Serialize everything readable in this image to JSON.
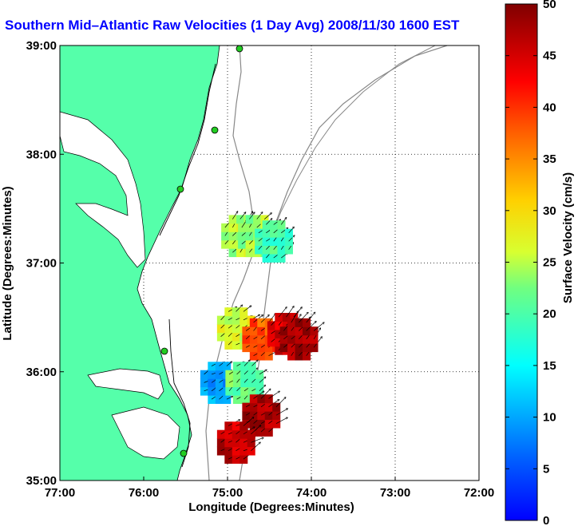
{
  "chart_data": {
    "type": "heatmap",
    "title": "Southern Mid–Atlantic Raw Velocities (1 Day Avg) 2008/11/30 1600 EST",
    "xlabel": "Longitude (Degrees:Minutes)",
    "ylabel": "Latitude (Degrees:Minutes)",
    "xlim": [
      -77,
      -72
    ],
    "ylim": [
      35,
      39
    ],
    "x_ticks": [
      -77,
      -76,
      -75,
      -74,
      -73,
      -72
    ],
    "x_tick_labels": [
      "77:00",
      "76:00",
      "75:00",
      "74:00",
      "73:00",
      "72:00"
    ],
    "y_ticks": [
      35,
      36,
      37,
      38,
      39
    ],
    "y_tick_labels": [
      "35:00",
      "36:00",
      "37:00",
      "38:00",
      "39:00"
    ],
    "grid": true,
    "colorbar": {
      "label": "Surface Velocity (cm/s)",
      "min": 0,
      "max": 50,
      "ticks": [
        0,
        5,
        10,
        15,
        20,
        25,
        30,
        35,
        40,
        45,
        50
      ],
      "colormap": "jet"
    },
    "land_color": "#55ffaa",
    "regions": [
      {
        "lon": -74.85,
        "lat": 37.25,
        "speed": 25,
        "dir_deg": 40
      },
      {
        "lon": -74.65,
        "lat": 37.25,
        "speed": 24,
        "dir_deg": 40
      },
      {
        "lon": -74.45,
        "lat": 37.2,
        "speed": 20,
        "dir_deg": 45
      },
      {
        "lon": -74.9,
        "lat": 36.4,
        "speed": 27,
        "dir_deg": 55
      },
      {
        "lon": -74.6,
        "lat": 36.3,
        "speed": 38,
        "dir_deg": 50
      },
      {
        "lon": -74.3,
        "lat": 36.35,
        "speed": 45,
        "dir_deg": 45
      },
      {
        "lon": -74.15,
        "lat": 36.3,
        "speed": 48,
        "dir_deg": 40
      },
      {
        "lon": -75.1,
        "lat": 35.9,
        "speed": 10,
        "dir_deg": 60
      },
      {
        "lon": -74.8,
        "lat": 35.9,
        "speed": 22,
        "dir_deg": 50
      },
      {
        "lon": -74.6,
        "lat": 35.6,
        "speed": 48,
        "dir_deg": 55
      },
      {
        "lon": -74.9,
        "lat": 35.35,
        "speed": 46,
        "dir_deg": 60
      }
    ]
  }
}
